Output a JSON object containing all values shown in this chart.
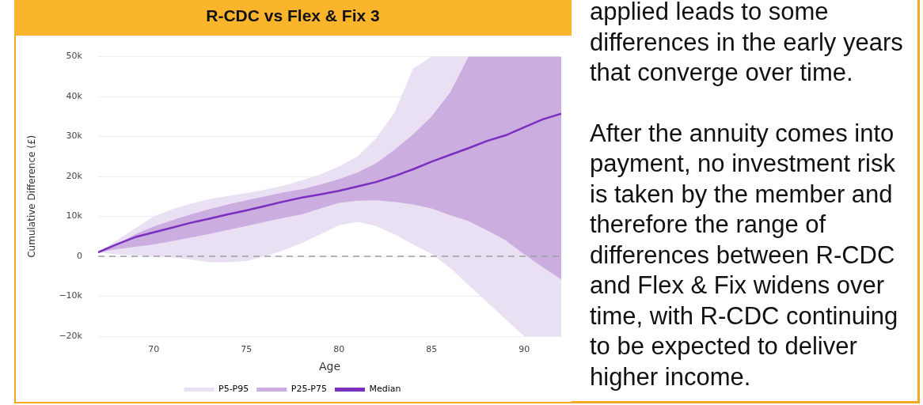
{
  "chart_data": {
    "type": "line",
    "title": "R-CDC vs Flex & Fix 3",
    "xlabel": "Age",
    "ylabel": "Cumulative Difference (£)",
    "x": [
      67,
      68,
      69,
      70,
      71,
      72,
      73,
      74,
      75,
      76,
      77,
      78,
      79,
      80,
      81,
      82,
      83,
      84,
      85,
      86,
      87,
      88,
      89,
      90,
      91,
      92
    ],
    "series": [
      {
        "name": "P5-P95",
        "color": "#eae0f3",
        "values": [
          null,
          null,
          null,
          null,
          null,
          null,
          null,
          null,
          null,
          null,
          null,
          null,
          null,
          null,
          null,
          null,
          null,
          null,
          null,
          null,
          null,
          null,
          null,
          null,
          null,
          null
        ],
        "lower": [
          1000,
          500,
          200,
          0,
          -300,
          -800,
          -1500,
          -1500,
          -1200,
          0,
          1500,
          3300,
          5500,
          7800,
          8600,
          7600,
          5500,
          3000,
          600,
          -2900,
          -7200,
          -11500,
          -15800,
          -20000,
          -20000,
          -20000
        ],
        "upper": [
          1000,
          4000,
          7000,
          10000,
          11800,
          13200,
          14300,
          15100,
          15800,
          16700,
          17700,
          19000,
          20500,
          22500,
          25000,
          29500,
          36000,
          47000,
          50000,
          50000,
          50000,
          50000,
          50000,
          50000,
          50000,
          50000
        ]
      },
      {
        "name": "P25-P75",
        "color": "#cbaddf",
        "values": [
          null,
          null,
          null,
          null,
          null,
          null,
          null,
          null,
          null,
          null,
          null,
          null,
          null,
          null,
          null,
          null,
          null,
          null,
          null,
          null,
          null,
          null,
          null,
          null,
          null,
          null
        ],
        "lower": [
          1000,
          1800,
          2400,
          3000,
          3800,
          4700,
          5600,
          6600,
          7600,
          8600,
          9600,
          10500,
          12000,
          13400,
          13900,
          14000,
          13600,
          13000,
          12000,
          10300,
          8800,
          6500,
          4000,
          500,
          -2700,
          -5800
        ],
        "upper": [
          1000,
          3000,
          5500,
          7500,
          9000,
          10500,
          11800,
          13000,
          14000,
          15000,
          16000,
          16800,
          18000,
          19300,
          21000,
          23300,
          26700,
          30500,
          35000,
          41000,
          50000,
          50000,
          50000,
          50000,
          50000,
          50000
        ]
      },
      {
        "name": "Median",
        "color": "#7b2fbf",
        "values": [
          1000,
          3000,
          4800,
          6000,
          7200,
          8400,
          9400,
          10500,
          11500,
          12600,
          13700,
          14700,
          15500,
          16400,
          17500,
          18600,
          20100,
          21800,
          23700,
          25400,
          27100,
          28900,
          30300,
          32300,
          34300,
          35700
        ]
      }
    ],
    "xlim": [
      67,
      92
    ],
    "xticks": [
      70,
      75,
      80,
      85,
      90
    ],
    "ylim": [
      -20000,
      50000
    ],
    "yticks": [
      {
        "value": -20000,
        "label": "−20k"
      },
      {
        "value": -10000,
        "label": "−10k"
      },
      0,
      {
        "value": 10000,
        "label": "10k"
      },
      {
        "value": 20000,
        "label": "20k"
      },
      {
        "value": 30000,
        "label": "30k"
      },
      {
        "value": 40000,
        "label": "40k"
      },
      {
        "value": 50000,
        "label": "50k"
      }
    ],
    "ref_lines": [
      {
        "axis": "y",
        "value": 0,
        "color": "#a0a0a0",
        "line_style": "dashed"
      }
    ],
    "grid": "y",
    "legend": "bottom",
    "marker": "none",
    "annotations": [
      "applied leads to some differences in the early years that converge over time.",
      "After the annuity comes into payment, no investment risk is taken by the member and therefore the range of differences between R-CDC and Flex & Fix widens over time, with R-CDC continuing to be expected to deliver higher income."
    ]
  }
}
